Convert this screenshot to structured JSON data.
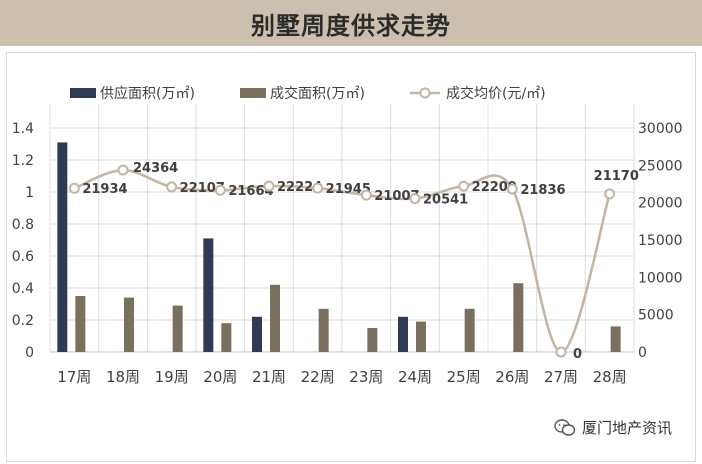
{
  "header": {
    "title": "别墅周度供求走势"
  },
  "watermark": {
    "source": "厦门地产资讯"
  },
  "colors": {
    "supply": "#2f3b55",
    "deal": "#7a7060",
    "price_line": "#c4b4a1",
    "grid": "#dcdcdc",
    "title_bar": "#cbbfae"
  },
  "chart_data": {
    "type": "bar",
    "categories": [
      "17周",
      "18周",
      "19周",
      "20周",
      "21周",
      "22周",
      "23周",
      "24周",
      "25周",
      "26周",
      "27周",
      "28周"
    ],
    "series": [
      {
        "name": "供应面积(万㎡)",
        "type": "bar",
        "axis": "left",
        "values": [
          1.31,
          0,
          0,
          0.71,
          0.22,
          0,
          0,
          0.22,
          0,
          0,
          0,
          0
        ]
      },
      {
        "name": "成交面积(万㎡)",
        "type": "bar",
        "axis": "left",
        "values": [
          0.35,
          0.34,
          0.29,
          0.18,
          0.42,
          0.27,
          0.15,
          0.19,
          0.27,
          0.43,
          0,
          0.16
        ]
      },
      {
        "name": "成交均价(元/㎡)",
        "type": "line",
        "axis": "right",
        "values": [
          21934,
          24364,
          22107,
          21664,
          22224,
          21945,
          21007,
          20541,
          22209,
          21836,
          0,
          21170
        ]
      }
    ],
    "left_axis": {
      "ylim": [
        0,
        1.4
      ],
      "ticks": [
        "0",
        "0.2",
        "0.4",
        "0.6",
        "0.8",
        "1",
        "1.2",
        "1.4"
      ]
    },
    "right_axis": {
      "ylim": [
        0,
        30000
      ],
      "ticks": [
        "0",
        "5000",
        "10000",
        "15000",
        "20000",
        "25000",
        "30000"
      ]
    },
    "legend_position": "top",
    "grid": true
  }
}
